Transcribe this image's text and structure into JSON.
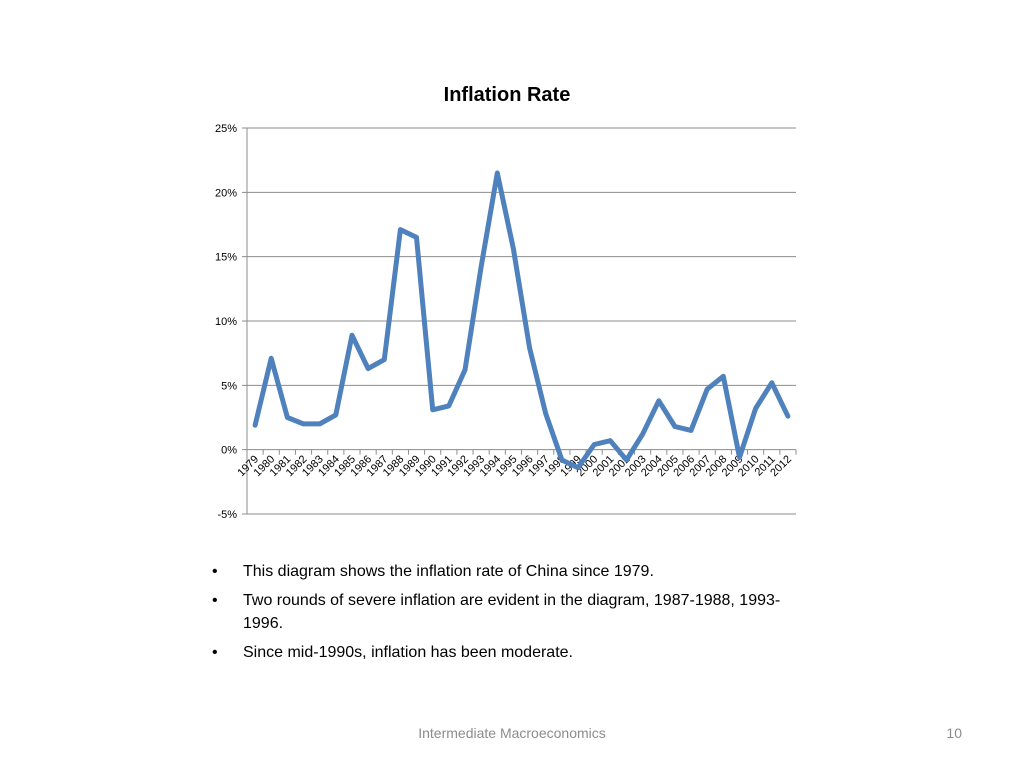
{
  "chart_data": {
    "type": "line",
    "title": "Inflation Rate",
    "x": [
      "1979",
      "1980",
      "1981",
      "1982",
      "1983",
      "1984",
      "1985",
      "1986",
      "1987",
      "1988",
      "1989",
      "1990",
      "1991",
      "1992",
      "1993",
      "1994",
      "1995",
      "1996",
      "1997",
      "1998",
      "1999",
      "2000",
      "2001",
      "2002",
      "2003",
      "2004",
      "2005",
      "2006",
      "2007",
      "2008",
      "2009",
      "2010",
      "2011",
      "2012"
    ],
    "series": [
      {
        "values": [
          1.9,
          7.1,
          2.5,
          2.0,
          2.0,
          2.7,
          8.9,
          6.3,
          7.0,
          17.1,
          16.5,
          3.1,
          3.4,
          6.2,
          14.2,
          21.5,
          15.6,
          7.9,
          2.8,
          -0.8,
          -1.4,
          0.4,
          0.7,
          -0.8,
          1.2,
          3.8,
          1.8,
          1.5,
          4.7,
          5.7,
          -0.6,
          3.2,
          5.2,
          2.6
        ],
        "color": "#4F81BD"
      }
    ],
    "ylim": [
      -5,
      25
    ],
    "yticks": [
      25,
      20,
      15,
      10,
      5,
      0,
      -5
    ],
    "ytick_labels": [
      "25%",
      "20%",
      "15%",
      "10%",
      "5%",
      "0%",
      "-5%"
    ],
    "grid": true,
    "legend": "none"
  },
  "bullets": [
    "This diagram shows the inflation rate of China since 1979.",
    "Two rounds of severe inflation are evident in the diagram, 1987-1988, 1993-1996.",
    "Since mid-1990s, inflation has been moderate."
  ],
  "bullet_symbol": "•",
  "footer": {
    "center_text": "Intermediate Macroeconomics",
    "page_number": "10"
  }
}
